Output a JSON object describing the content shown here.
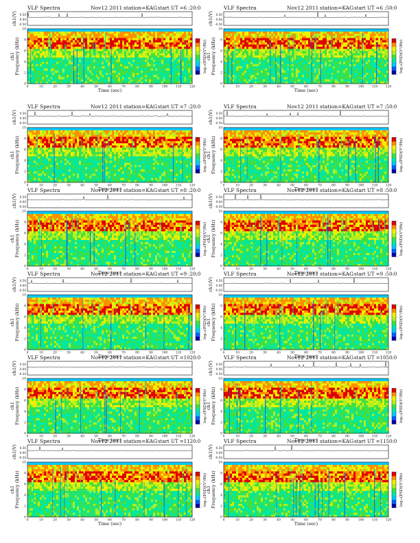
{
  "page": {
    "background": "#ffffff"
  },
  "common": {
    "title": "VLF Spectra",
    "date": "Nov12 2011",
    "station": "station=KAG",
    "start_label": "start  UT =",
    "ch_label": "ch1(V)",
    "freq_label_top": "ch1",
    "freq_label": "Frequency  (kHz)",
    "xlabel": "Time  (sec)",
    "colorbar_label": "log₁₀(PSD)(V²/Hz)",
    "xticks": [
      "0",
      "10",
      "20",
      "30",
      "40",
      "50",
      "60",
      "70",
      "80",
      "90",
      "100",
      "110",
      "120"
    ],
    "yticks": [
      "0",
      "2",
      "4",
      "6",
      "8",
      "10"
    ],
    "ch_ticks": [
      "0.50",
      "0.00",
      "-0.50"
    ],
    "colorbar_ticks": [
      "-",
      "-",
      "-",
      "-"
    ],
    "palette": [
      "#0000aa",
      "#0060ff",
      "#00c8ff",
      "#00e8a0",
      "#40e040",
      "#b0f020",
      "#f0f000",
      "#ff9000",
      "#e00000"
    ]
  },
  "panels": [
    {
      "ut": "6 :20:0"
    },
    {
      "ut": "6 :50:0"
    },
    {
      "ut": "7 :20:0"
    },
    {
      "ut": "7 :50:0"
    },
    {
      "ut": "8 :20:0"
    },
    {
      "ut": "8 :50:0"
    },
    {
      "ut": "9 :20:0"
    },
    {
      "ut": "9 :50:0"
    },
    {
      "ut": "1020:0"
    },
    {
      "ut": "1050:0"
    },
    {
      "ut": "1120:0"
    },
    {
      "ut": "1150:0"
    }
  ],
  "chart_data": [
    {
      "type": "heatmap",
      "title": "VLF Spectra  Nov12 2011  station=KAG  start UT =6 :20:0",
      "xlabel": "Time  (sec)",
      "ylabel": "Frequency (kHz)",
      "xlim": [
        0,
        120
      ],
      "ylim": [
        0,
        10
      ],
      "ch1_ylim": [
        -0.5,
        0.5
      ]
    },
    {
      "type": "heatmap",
      "title": "VLF Spectra  Nov12 2011  station=KAG  start UT =6 :50:0",
      "xlabel": "Time  (sec)",
      "ylabel": "Frequency (kHz)",
      "xlim": [
        0,
        120
      ],
      "ylim": [
        0,
        10
      ],
      "ch1_ylim": [
        -0.5,
        0.5
      ]
    },
    {
      "type": "heatmap",
      "title": "VLF Spectra  Nov12 2011  station=KAG  start UT =7 :20:0",
      "xlabel": "Time  (sec)",
      "ylabel": "Frequency (kHz)",
      "xlim": [
        0,
        120
      ],
      "ylim": [
        0,
        10
      ],
      "ch1_ylim": [
        -0.5,
        0.5
      ]
    },
    {
      "type": "heatmap",
      "title": "VLF Spectra  Nov12 2011  station=KAG  start UT =7 :50:0",
      "xlabel": "Time  (sec)",
      "ylabel": "Frequency (kHz)",
      "xlim": [
        0,
        120
      ],
      "ylim": [
        0,
        10
      ],
      "ch1_ylim": [
        -0.5,
        0.5
      ]
    },
    {
      "type": "heatmap",
      "title": "VLF Spectra  Nov12 2011  station=KAG  start UT =8 :20:0",
      "xlabel": "Time  (sec)",
      "ylabel": "Frequency (kHz)",
      "xlim": [
        0,
        120
      ],
      "ylim": [
        0,
        10
      ],
      "ch1_ylim": [
        -0.5,
        0.5
      ]
    },
    {
      "type": "heatmap",
      "title": "VLF Spectra  Nov12 2011  station=KAG  start UT =8 :50:0",
      "xlabel": "Time  (sec)",
      "ylabel": "Frequency (kHz)",
      "xlim": [
        0,
        120
      ],
      "ylim": [
        0,
        10
      ],
      "ch1_ylim": [
        -0.5,
        0.5
      ]
    },
    {
      "type": "heatmap",
      "title": "VLF Spectra  Nov12 2011  station=KAG  start UT =9 :20:0",
      "xlabel": "Time  (sec)",
      "ylabel": "Frequency (kHz)",
      "xlim": [
        0,
        120
      ],
      "ylim": [
        0,
        10
      ],
      "ch1_ylim": [
        -0.5,
        0.5
      ]
    },
    {
      "type": "heatmap",
      "title": "VLF Spectra  Nov12 2011  station=KAG  start UT =9 :50:0",
      "xlabel": "Time  (sec)",
      "ylabel": "Frequency (kHz)",
      "xlim": [
        0,
        120
      ],
      "ylim": [
        0,
        10
      ],
      "ch1_ylim": [
        -0.5,
        0.5
      ]
    },
    {
      "type": "heatmap",
      "title": "VLF Spectra  Nov12 2011  station=KAG  start UT =1020:0",
      "xlabel": "Time  (sec)",
      "ylabel": "Frequency (kHz)",
      "xlim": [
        0,
        120
      ],
      "ylim": [
        0,
        10
      ],
      "ch1_ylim": [
        -0.5,
        0.5
      ]
    },
    {
      "type": "heatmap",
      "title": "VLF Spectra  Nov12 2011  station=KAG  start UT =1050:0",
      "xlabel": "Time  (sec)",
      "ylabel": "Frequency (kHz)",
      "xlim": [
        0,
        120
      ],
      "ylim": [
        0,
        10
      ],
      "ch1_ylim": [
        -0.5,
        0.5
      ]
    },
    {
      "type": "heatmap",
      "title": "VLF Spectra  Nov12 2011  station=KAG  start UT =1120:0",
      "xlabel": "Time  (sec)",
      "ylabel": "Frequency (kHz)",
      "xlim": [
        0,
        120
      ],
      "ylim": [
        0,
        10
      ],
      "ch1_ylim": [
        -0.5,
        0.5
      ]
    },
    {
      "type": "heatmap",
      "title": "VLF Spectra  Nov12 2011  station=KAG  start UT =1150:0",
      "xlabel": "Time  (sec)",
      "ylabel": "Frequency (kHz)",
      "xlim": [
        0,
        120
      ],
      "ylim": [
        0,
        10
      ],
      "ch1_ylim": [
        -0.5,
        0.5
      ]
    }
  ]
}
